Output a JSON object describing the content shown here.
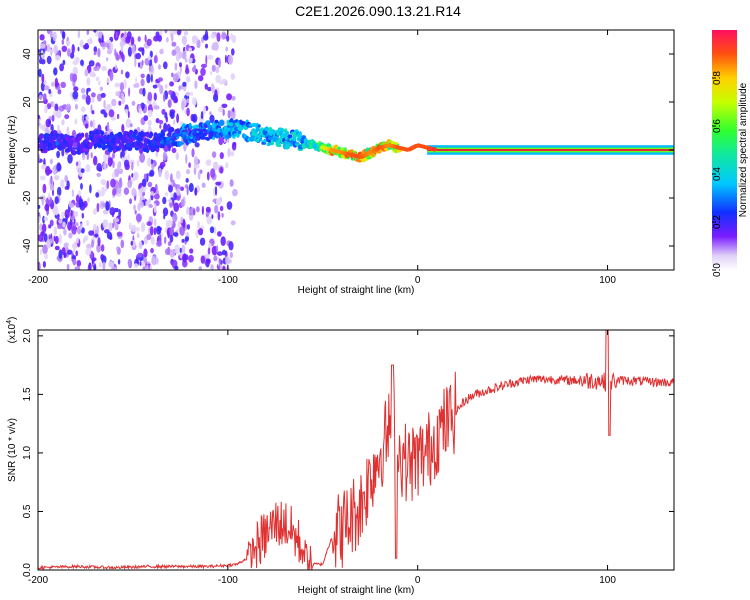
{
  "figure_title": "C2E1.2026.090.13.21.R14",
  "colors": {
    "line": "#e03030",
    "ridge": "#e8203a",
    "axis": "#000000"
  },
  "chart_data": [
    {
      "type": "heatmap",
      "title": "C2E1.2026.090.13.21.R14",
      "xlabel": "Height of straight line (km)",
      "ylabel": "Frequency (Hz)",
      "xlim": [
        -200,
        135
      ],
      "ylim": [
        -50,
        50
      ],
      "xticks": [
        "-200",
        "-100",
        "0",
        "100"
      ],
      "yticks": [
        "-40",
        "-20",
        "0",
        "20",
        "40"
      ],
      "colorbar": {
        "label": "Normalized spectral amplitude",
        "range": [
          0,
          1
        ],
        "ticks": [
          "0.0",
          "0.2",
          "0.4",
          "0.6",
          "0.8"
        ]
      },
      "ridge": {
        "x": [
          -200,
          -190,
          -180,
          -170,
          -160,
          -150,
          -140,
          -130,
          -120,
          -110,
          -100,
          -90,
          -80,
          -70,
          -60,
          -50,
          -45,
          -40,
          -35,
          -30,
          -25,
          -20,
          -15,
          -10,
          -5,
          0,
          5,
          10,
          20,
          40,
          60,
          80,
          100,
          120,
          135
        ],
        "freq": [
          3,
          4,
          2,
          5,
          3,
          4,
          3,
          5,
          7,
          8,
          9,
          8,
          6,
          5,
          3,
          1,
          0,
          -1,
          -2,
          -3,
          -1,
          1,
          2,
          1,
          0,
          2,
          1,
          0,
          0,
          0,
          0,
          0,
          0,
          0,
          0
        ],
        "amplitude": [
          0.2,
          0.3,
          0.2,
          0.25,
          0.25,
          0.25,
          0.25,
          0.3,
          0.35,
          0.35,
          0.4,
          0.4,
          0.45,
          0.45,
          0.45,
          0.7,
          0.85,
          0.85,
          0.9,
          0.9,
          0.85,
          0.9,
          0.85,
          0.9,
          0.9,
          0.9,
          0.9,
          0.95,
          1,
          1,
          1,
          1,
          1,
          1,
          1
        ]
      }
    },
    {
      "type": "line",
      "xlabel": "Height of straight line (km)",
      "ylabel": "SNR (10 * v/v)",
      "scale_label": "(x10",
      "scale_exponent": "4",
      "xlim": [
        -200,
        135
      ],
      "ylim": [
        0,
        2.05
      ],
      "xticks": [
        "-200",
        "-100",
        "0",
        "100"
      ],
      "yticks": [
        "0.0",
        "0.5",
        "1.0",
        "1.5",
        "2.0"
      ],
      "series": [
        {
          "name": "SNR",
          "x": [
            -200,
            -180,
            -160,
            -140,
            -120,
            -110,
            -100,
            -95,
            -90,
            -85,
            -80,
            -75,
            -70,
            -65,
            -60,
            -55,
            -50,
            -45,
            -40,
            -35,
            -30,
            -25,
            -20,
            -15,
            -13,
            -10,
            -5,
            0,
            5,
            10,
            15,
            20,
            25,
            30,
            40,
            50,
            60,
            70,
            80,
            90,
            95,
            100,
            105,
            110,
            120,
            135
          ],
          "y": [
            0.02,
            0.03,
            0.02,
            0.03,
            0.03,
            0.03,
            0.04,
            0.05,
            0.1,
            0.2,
            0.3,
            0.4,
            0.4,
            0.3,
            0.15,
            0.05,
            0.05,
            0.3,
            0.35,
            0.45,
            0.55,
            0.8,
            1.0,
            1.2,
            1.4,
            1.0,
            0.9,
            0.95,
            1.0,
            1.15,
            1.25,
            1.35,
            1.45,
            1.5,
            1.55,
            1.6,
            1.63,
            1.63,
            1.62,
            1.62,
            1.62,
            1.6,
            1.62,
            1.62,
            1.61,
            1.6
          ]
        }
      ]
    }
  ]
}
